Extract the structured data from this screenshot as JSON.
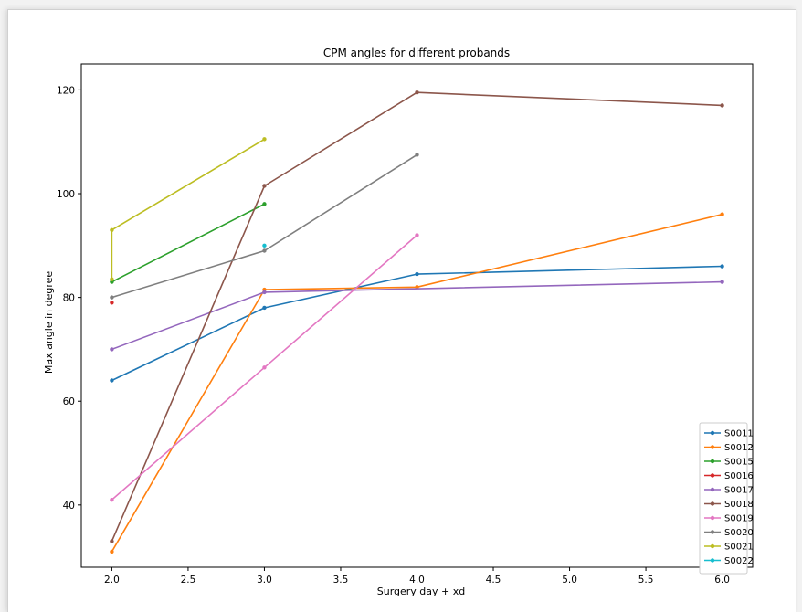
{
  "chart_data": {
    "type": "line",
    "title": "CPM angles for different probands",
    "xlabel": "Surgery day + xd",
    "ylabel": "Max angle in degree",
    "xlim": [
      1.8,
      6.2
    ],
    "ylim": [
      28,
      125
    ],
    "x_ticks": [
      2.0,
      2.5,
      3.0,
      3.5,
      4.0,
      4.5,
      5.0,
      5.5,
      6.0
    ],
    "x_tick_labels": [
      "2.0",
      "2.5",
      "3.0",
      "3.5",
      "4.0",
      "4.5",
      "5.0",
      "5.5",
      "6.0"
    ],
    "y_ticks": [
      40,
      60,
      80,
      100,
      120
    ],
    "y_tick_labels": [
      "40",
      "60",
      "80",
      "100",
      "120"
    ],
    "grid": false,
    "legend_position": "lower-right",
    "series": [
      {
        "name": "S0011",
        "color": "#1f77b4",
        "points": [
          [
            2,
            64
          ],
          [
            3,
            78
          ],
          [
            4,
            84.5
          ],
          [
            6,
            86
          ]
        ]
      },
      {
        "name": "S0012",
        "color": "#ff7f0e",
        "points": [
          [
            2,
            31
          ],
          [
            3,
            81.5
          ],
          [
            4,
            82
          ],
          [
            6,
            96
          ]
        ]
      },
      {
        "name": "S0015",
        "color": "#2ca02c",
        "points": [
          [
            2,
            83
          ],
          [
            3,
            98
          ]
        ]
      },
      {
        "name": "S0016",
        "color": "#d62728",
        "points": [
          [
            2,
            79
          ]
        ]
      },
      {
        "name": "S0017",
        "color": "#9467bd",
        "points": [
          [
            2,
            70
          ],
          [
            3,
            81
          ],
          [
            6,
            83
          ]
        ]
      },
      {
        "name": "S0018",
        "color": "#8c564b",
        "points": [
          [
            2,
            33
          ],
          [
            3,
            101.5
          ],
          [
            4,
            119.5
          ],
          [
            6,
            117
          ]
        ]
      },
      {
        "name": "S0019",
        "color": "#e377c2",
        "points": [
          [
            2,
            41
          ],
          [
            3,
            66.5
          ],
          [
            4,
            92
          ]
        ]
      },
      {
        "name": "S0020",
        "color": "#7f7f7f",
        "points": [
          [
            2,
            80
          ],
          [
            3,
            89
          ],
          [
            4,
            107.5
          ]
        ]
      },
      {
        "name": "S0021",
        "color": "#bcbd22",
        "points": [
          [
            2,
            83.5
          ],
          [
            2,
            93
          ],
          [
            3,
            110.5
          ]
        ]
      },
      {
        "name": "S0022",
        "color": "#17becf",
        "points": [
          [
            3,
            90
          ]
        ]
      }
    ]
  }
}
